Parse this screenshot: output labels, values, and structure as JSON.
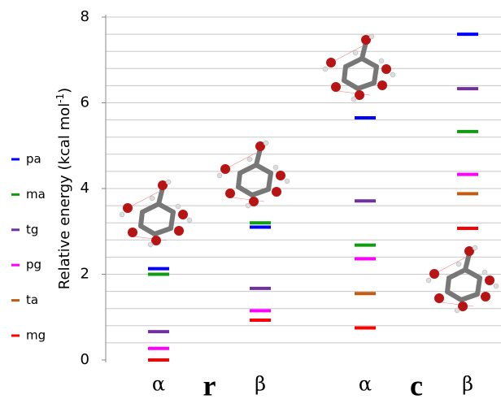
{
  "chart_data": {
    "type": "energy-levels",
    "ylabel": "Relative energy  (kcal mol",
    "ylabel_sup": "-1",
    "ylabel_end": ")",
    "categories": [
      "α",
      "β",
      "α",
      "β"
    ],
    "groups": [
      {
        "label": "r",
        "span": [
          0,
          1
        ]
      },
      {
        "label": "c",
        "span": [
          2,
          3
        ]
      }
    ],
    "series": [
      {
        "name": "pa",
        "color": "#0000ff",
        "values": [
          2.13,
          3.1,
          5.65,
          7.6
        ]
      },
      {
        "name": "ma",
        "color": "#109c10",
        "values": [
          2.0,
          3.2,
          2.68,
          5.33
        ]
      },
      {
        "name": "tg",
        "color": "#7030a0",
        "values": [
          0.66,
          1.67,
          3.71,
          6.33
        ]
      },
      {
        "name": "pg",
        "color": "#ff00ff",
        "values": [
          0.27,
          1.15,
          2.36,
          4.33
        ]
      },
      {
        "name": "ta",
        "color": "#c55a11",
        "values": [
          null,
          null,
          1.55,
          3.88
        ]
      },
      {
        "name": "mg",
        "color": "#ff0000",
        "values": [
          0.0,
          0.93,
          0.75,
          3.07
        ]
      }
    ],
    "ylim": [
      0,
      8
    ],
    "yticks": [
      0,
      2,
      4,
      6,
      8
    ],
    "grid_lines": [
      0.4,
      0.8,
      1.2,
      1.6,
      2,
      2.4,
      2.8,
      3.2,
      3.6,
      4,
      4.4,
      4.8,
      5.2,
      5.6,
      6,
      6.4,
      6.8,
      7.2,
      7.6,
      8
    ],
    "grid": true,
    "legend": "left"
  }
}
